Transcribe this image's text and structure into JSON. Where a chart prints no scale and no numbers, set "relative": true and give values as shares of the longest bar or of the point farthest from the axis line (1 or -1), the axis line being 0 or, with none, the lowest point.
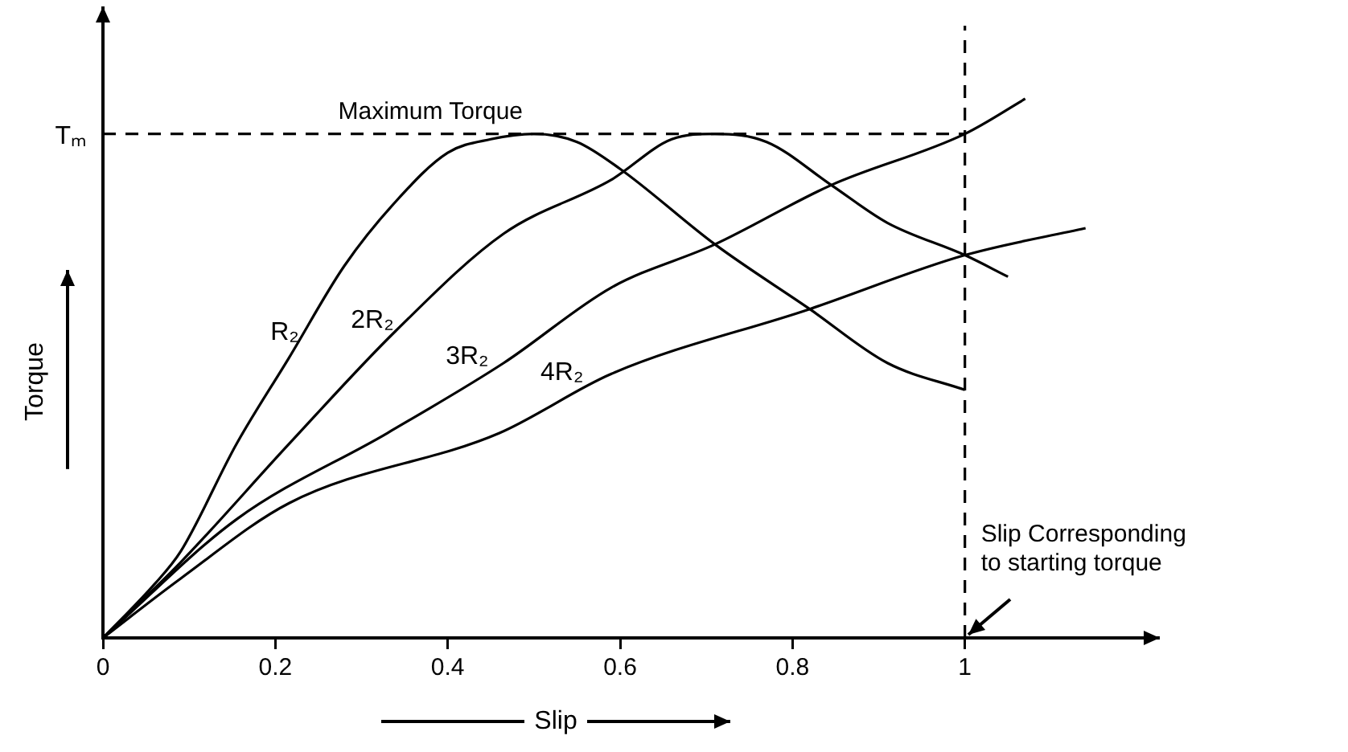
{
  "chart_data": {
    "type": "line",
    "xlabel": "Slip",
    "ylabel": "Torque",
    "relative": true,
    "xlim": [
      0,
      1.2
    ],
    "xticks": [
      0,
      0.2,
      0.4,
      0.6,
      0.8,
      1
    ],
    "grid": false,
    "legend": false,
    "marker": "none",
    "line_style": "solid",
    "series": [
      {
        "name": "R₂",
        "color": "#000000",
        "x": [
          0,
          0.06,
          0.09,
          0.155,
          0.216,
          0.28,
          0.34,
          0.4,
          0.45,
          0.5,
          0.55,
          0.6,
          0.71,
          0.82,
          0.91,
          1.0
        ],
        "values": [
          0,
          0.1,
          0.16,
          0.36,
          0.52,
          0.69,
          0.81,
          0.9,
          0.925,
          0.935,
          0.92,
          0.87,
          0.73,
          0.61,
          0.51,
          0.46
        ]
      },
      {
        "name": "2R₂",
        "color": "#000000",
        "x": [
          0,
          0.09,
          0.216,
          0.34,
          0.465,
          0.59,
          0.66,
          0.71,
          0.77,
          0.845,
          0.91,
          1.0,
          1.05
        ],
        "values": [
          0,
          0.14,
          0.36,
          0.57,
          0.75,
          0.85,
          0.925,
          0.935,
          0.92,
          0.84,
          0.77,
          0.71,
          0.67
        ]
      },
      {
        "name": "3R₂",
        "color": "#000000",
        "x": [
          0,
          0.155,
          0.33,
          0.465,
          0.59,
          0.71,
          0.845,
          1.0,
          1.07
        ],
        "values": [
          0,
          0.22,
          0.38,
          0.51,
          0.65,
          0.73,
          0.84,
          0.935,
          1
        ]
      },
      {
        "name": "4R₂",
        "color": "#000000",
        "x": [
          0,
          0.09,
          0.216,
          0.46,
          0.59,
          0.82,
          1.0,
          1.14
        ],
        "values": [
          0,
          0.11,
          0.25,
          0.38,
          0.49,
          0.61,
          0.71,
          0.76
        ]
      }
    ],
    "ref_lines": [
      {
        "axis": "y",
        "value": 0.935,
        "label": "Tₘ",
        "line_style": "dashed",
        "color": "#000000"
      },
      {
        "axis": "x",
        "value": 1,
        "line_style": "dashed",
        "color": "#000000"
      }
    ],
    "annotations": [
      {
        "text": "Maximum Torque",
        "x": 0.38,
        "y": 0.935
      },
      {
        "text": "Slip Corresponding\nto starting torque",
        "x": 1,
        "y": 0
      }
    ]
  }
}
